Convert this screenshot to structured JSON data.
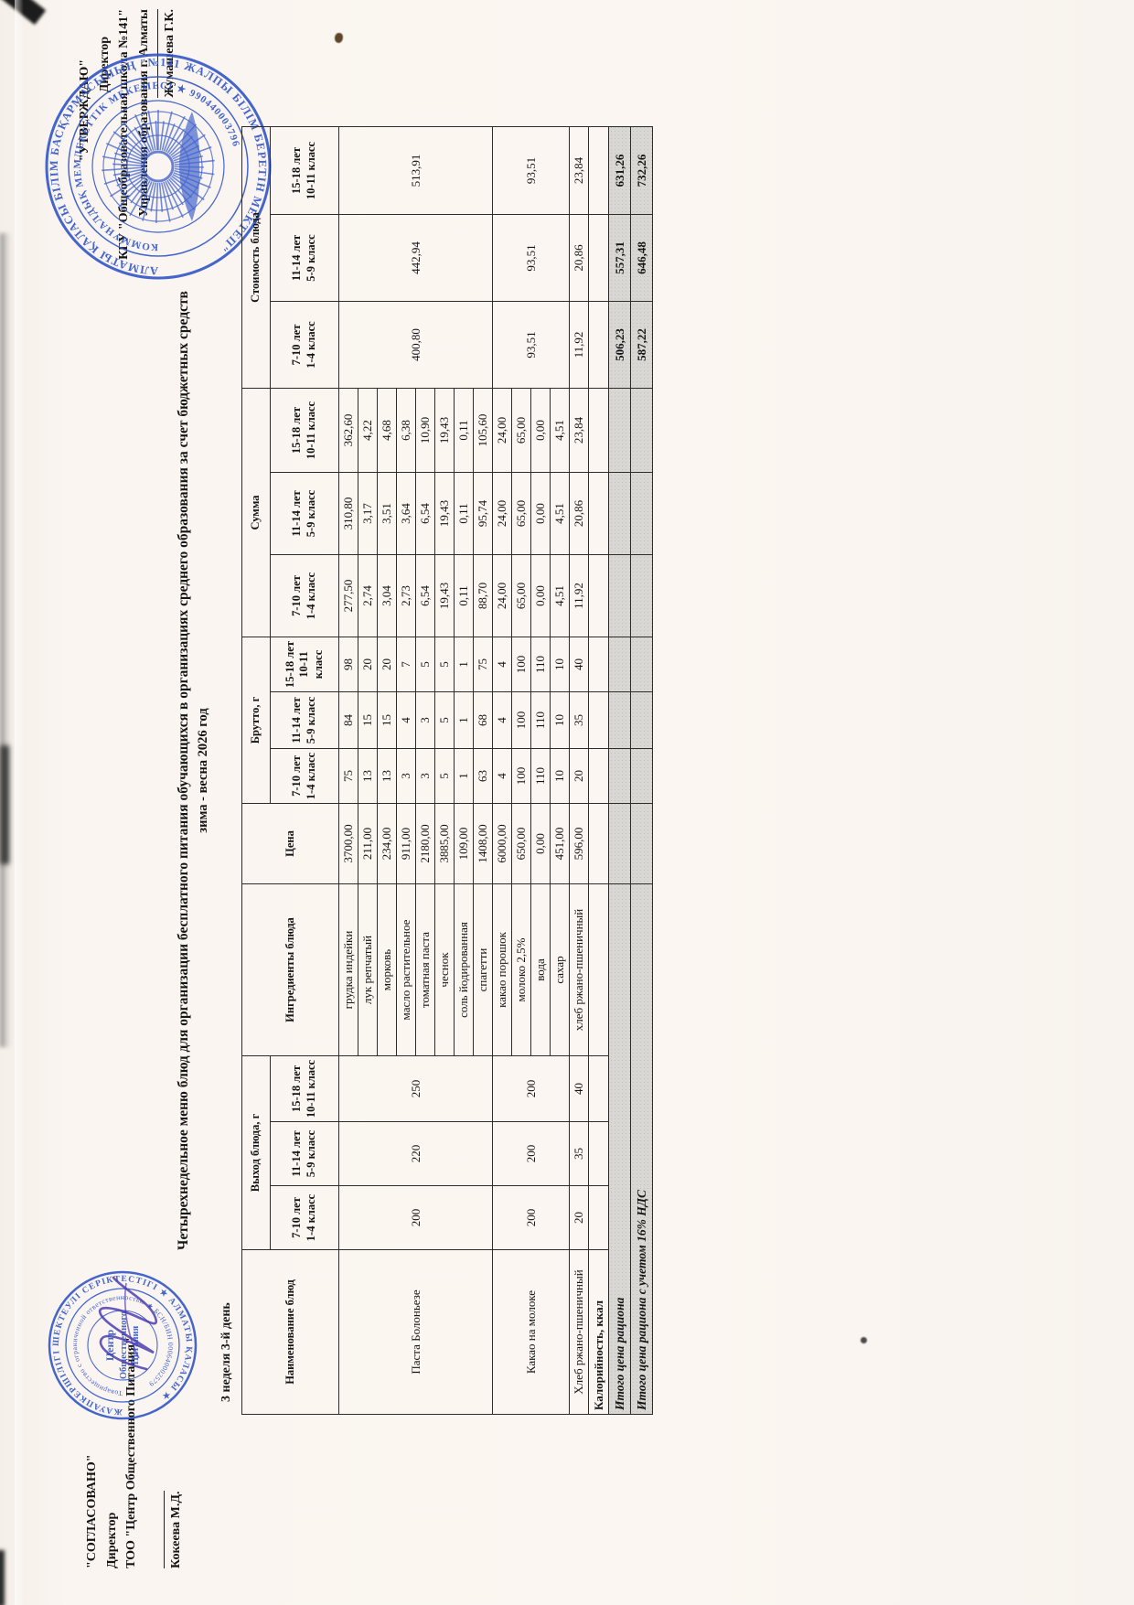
{
  "approval_left": {
    "line1": "\"СОГЛАСОВАНО\"",
    "line2": "Директор",
    "line3": "ТОО \"Центр Общественного Питания\"",
    "signer": "Кокеева М.Д."
  },
  "approval_right": {
    "line1": "\"УТВЕРЖДАЮ\"",
    "line2": "Директор",
    "line3": "КГУ \"Общеобразовательная школа №141\"",
    "line4": "Управления образования г. Алматы",
    "signer": "Жумашева Г.К."
  },
  "title_line1": "Четырехнедельное меню блюд для организации бесплатного питания обучающихся в организациях среднего образования за счет бюджетных средств",
  "title_line2": "зима - весна 2026 год",
  "day_label": "3 неделя 3-й день",
  "stamps": {
    "left": {
      "ring_outer": "ЖАУАПКЕРШІЛІГІ ШЕКТЕУЛІ СЕРІКТЕСТІГІ  ★  АЛМАТЫ ҚАЛАСЫ  ★",
      "ring_inner": "Товарищество с ограниченной ответственностью ★ БСН/БИН 000640002579",
      "center_line1": "Центр",
      "center_line2": "Общественного",
      "center_line3": "Питания"
    },
    "right": {
      "ring_outer": "АЛМАТЫ ҚАЛАСЫ БІЛІМ БАСҚАРМАСЫНЫҢ \"№141 ЖАЛПЫ БІЛІМ БЕРЕТІН МЕКТЕП\"",
      "ring_inner": "КОММУНАЛДЫҚ МЕМЛЕКЕТТІК МЕКЕМЕСІ  ★  990440003796"
    }
  },
  "table": {
    "headers": {
      "name": "Наименование блюд",
      "output": "Выход блюда, г",
      "ingredients": "Ингредиенты блюда",
      "price": "Цена",
      "brutto": "Брутто, г",
      "sum": "Сумма",
      "cost": "Стоимость блюда"
    },
    "age_groups": [
      {
        "l1": "7-10 лет",
        "l2": "1-4 класс"
      },
      {
        "l1": "11-14 лет",
        "l2": "5-9 класс"
      },
      {
        "l1": "15-18 лет",
        "l2": "10-11 класс"
      }
    ],
    "dishes": [
      {
        "name": "Паста Болоньезе",
        "output": [
          "200",
          "220",
          "250"
        ],
        "cost": [
          "400,80",
          "442,94",
          "513,91"
        ],
        "ingredients": [
          {
            "name": "грудка индейки",
            "price": "3700,00",
            "brutto": [
              "75",
              "84",
              "98"
            ],
            "sums": [
              "277,50",
              "310,80",
              "362,60"
            ]
          },
          {
            "name": "лук репчатый",
            "price": "211,00",
            "brutto": [
              "13",
              "15",
              "20"
            ],
            "sums": [
              "2,74",
              "3,17",
              "4,22"
            ]
          },
          {
            "name": "морковь",
            "price": "234,00",
            "brutto": [
              "13",
              "15",
              "20"
            ],
            "sums": [
              "3,04",
              "3,51",
              "4,68"
            ]
          },
          {
            "name": "масло растительное",
            "price": "911,00",
            "brutto": [
              "3",
              "4",
              "7"
            ],
            "sums": [
              "2,73",
              "3,64",
              "6,38"
            ]
          },
          {
            "name": "томатная паста",
            "price": "2180,00",
            "brutto": [
              "3",
              "3",
              "5"
            ],
            "sums": [
              "6,54",
              "6,54",
              "10,90"
            ]
          },
          {
            "name": "чеснок",
            "price": "3885,00",
            "brutto": [
              "5",
              "5",
              "5"
            ],
            "sums": [
              "19,43",
              "19,43",
              "19,43"
            ]
          },
          {
            "name": "соль йодированная",
            "price": "109,00",
            "brutto": [
              "1",
              "1",
              "1"
            ],
            "sums": [
              "0,11",
              "0,11",
              "0,11"
            ]
          },
          {
            "name": "спагетти",
            "price": "1408,00",
            "brutto": [
              "63",
              "68",
              "75"
            ],
            "sums": [
              "88,70",
              "95,74",
              "105,60"
            ]
          }
        ]
      },
      {
        "name": "Какао на молоке",
        "output": [
          "200",
          "200",
          "200"
        ],
        "cost": [
          "93,51",
          "93,51",
          "93,51"
        ],
        "ingredients": [
          {
            "name": "какао порошок",
            "price": "6000,00",
            "brutto": [
              "4",
              "4",
              "4"
            ],
            "sums": [
              "24,00",
              "24,00",
              "24,00"
            ]
          },
          {
            "name": "молоко 2,5%",
            "price": "650,00",
            "brutto": [
              "100",
              "100",
              "100"
            ],
            "sums": [
              "65,00",
              "65,00",
              "65,00"
            ]
          },
          {
            "name": "вода",
            "price": "0,00",
            "brutto": [
              "110",
              "110",
              "110"
            ],
            "sums": [
              "0,00",
              "0,00",
              "0,00"
            ]
          },
          {
            "name": "сахар",
            "price": "451,00",
            "brutto": [
              "10",
              "10",
              "10"
            ],
            "sums": [
              "4,51",
              "4,51",
              "4,51"
            ]
          }
        ]
      },
      {
        "name": "Хлеб ржано-пшеничный",
        "output": [
          "20",
          "35",
          "40"
        ],
        "cost": [
          "11,92",
          "20,86",
          "23,84"
        ],
        "ingredients": [
          {
            "name": "хлеб ржано-пшеничный",
            "price": "596,00",
            "brutto": [
              "20",
              "35",
              "40"
            ],
            "sums": [
              "11,92",
              "20,86",
              "23,84"
            ]
          }
        ]
      }
    ],
    "kcal_label": "Калорийность, ккал",
    "totals": [
      {
        "label": "Итого цена рациона",
        "values": [
          "506,23",
          "557,31",
          "631,26"
        ]
      },
      {
        "label": "Итого цена рациона с учетом 16% НДС",
        "values": [
          "587,22",
          "646,48",
          "732,26"
        ]
      }
    ]
  },
  "colors": {
    "stamp_blue": "#2d52c7",
    "signature_ink": "#4b3db0",
    "shade_gray": "#d9d7d4",
    "paper": "#faf5f0"
  }
}
